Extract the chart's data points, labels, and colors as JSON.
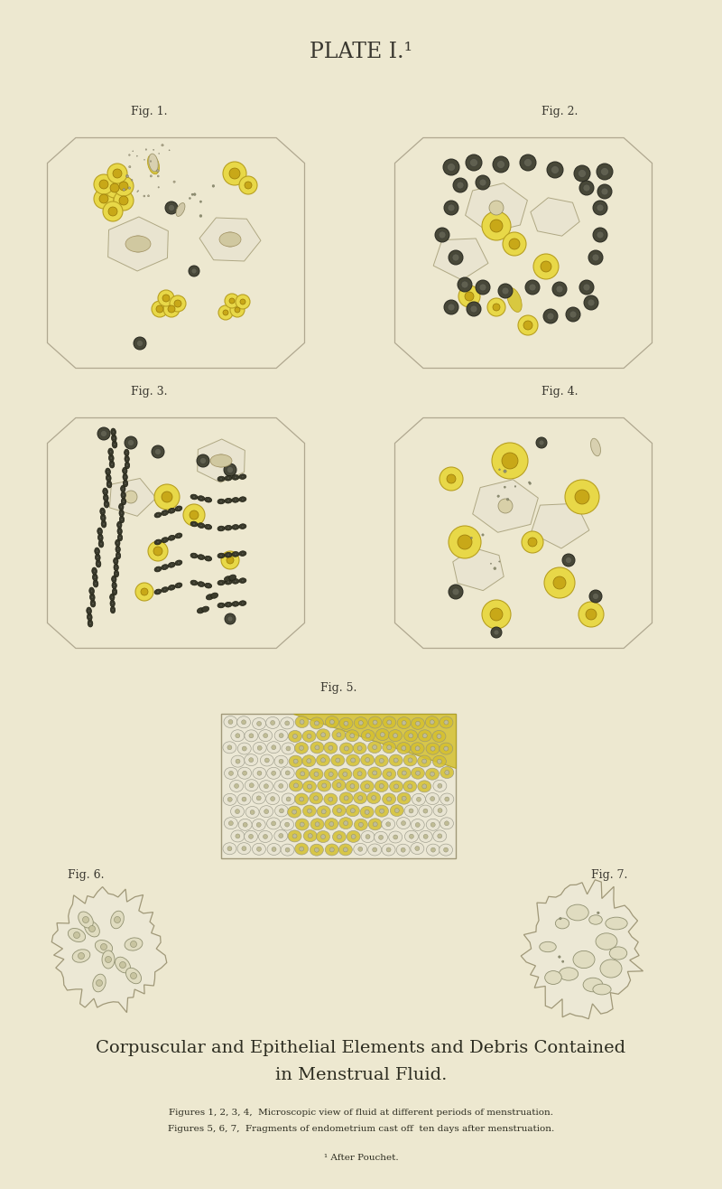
{
  "bg_color": "#ede8d0",
  "plate_title": "PLATE I.¹",
  "fig_labels": [
    "Fig. 1.",
    "Fig. 2.",
    "Fig. 3.",
    "Fig. 4.",
    "Fig. 5.",
    "Fig. 6.",
    "Fig. 7."
  ],
  "caption_title_line1": "Corpuscular and Epithelial Elements and Debris Contained",
  "caption_title_line2": "in Menstrual Fluid.",
  "caption_line1": "Figures 1, 2, 3, 4,  Microscopic view of fluid at different periods of menstruation.",
  "caption_line2": "Figures 5, 6, 7,  Fragments of endometrium cast off  ten days after menstruation.",
  "footnote": "¹ After Pouchet.",
  "panel_border_color": "#b0a890",
  "yellow_fc": "#e8d848",
  "yellow_ec": "#b8a020",
  "dark_fc": "#484838",
  "dark_ec": "#282820"
}
